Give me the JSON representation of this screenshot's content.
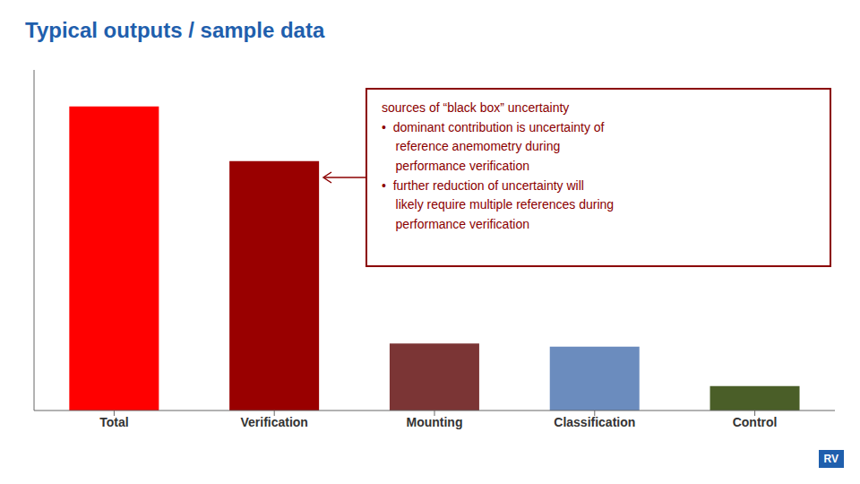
{
  "chart_data": {
    "type": "bar",
    "title": "Typical outputs / sample data",
    "categories": [
      "Total",
      "Verification",
      "Mounting",
      "Classification",
      "Control"
    ],
    "values": [
      100,
      82,
      22,
      21,
      8
    ],
    "colors": [
      "#FF0000",
      "#990000",
      "#7B3535",
      "#6B8CBE",
      "#4A5E28"
    ],
    "ylim": [
      0,
      112
    ],
    "grid": false,
    "tick_labels": "x",
    "annotations": [
      {
        "text": "sources of “black box” uncertainty\n•  dominant contribution is uncertainty of\n    reference anemometry during\n    performance verification\n•  further reduction of uncertainty will\n    likely require multiple references during\n    performance verification"
      },
      {
        "text": "RV"
      }
    ]
  }
}
